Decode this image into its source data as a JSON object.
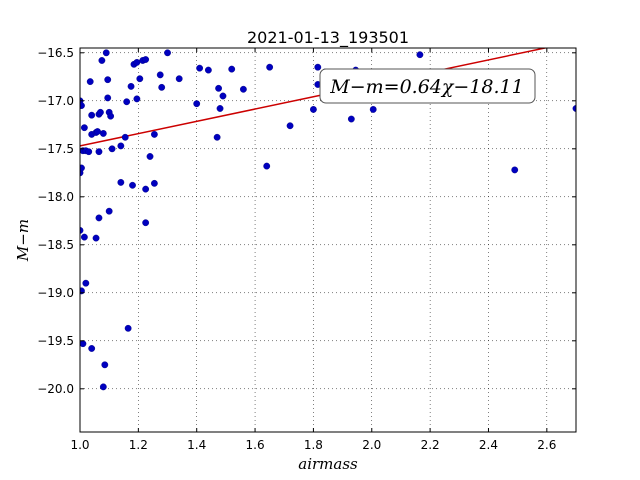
{
  "chart_data": {
    "type": "scatter",
    "title": "2021-01-13_193501",
    "xlabel": "airmass",
    "ylabel": "M−m",
    "xlim": [
      1.0,
      2.7
    ],
    "ylim": [
      -20.45,
      -16.45
    ],
    "y_inverted": false,
    "grid": true,
    "grid_style": "dotted",
    "x_ticks": [
      1.0,
      1.2,
      1.4,
      1.6,
      1.8,
      2.0,
      2.2,
      2.4,
      2.6
    ],
    "x_tick_labels": [
      "1.0",
      "1.2",
      "1.4",
      "1.6",
      "1.8",
      "2.0",
      "2.2",
      "2.4",
      "2.6"
    ],
    "y_ticks": [
      -16.5,
      -17.0,
      -17.5,
      -18.0,
      -18.5,
      -19.0,
      -19.5,
      -20.0
    ],
    "y_tick_labels": [
      "−16.5",
      "−17.0",
      "−17.5",
      "−18.0",
      "−18.5",
      "−19.0",
      "−19.5",
      "−20.0"
    ],
    "point_color": "#0000bf",
    "fit_color": "#cc0000",
    "fit": {
      "slope": 0.64,
      "intercept": -18.11,
      "x_range": [
        1.0,
        2.7
      ]
    },
    "annotation": {
      "lhs": "M−m",
      "eq": "=",
      "rhs": "0.64χ−18.11"
    },
    "points": [
      [
        1.0,
        -17.0
      ],
      [
        1.005,
        -17.05
      ],
      [
        1.0,
        -17.75
      ],
      [
        1.005,
        -17.7
      ],
      [
        1.01,
        -17.52
      ],
      [
        1.0,
        -18.35
      ],
      [
        1.015,
        -17.28
      ],
      [
        1.02,
        -17.52
      ],
      [
        1.03,
        -17.53
      ],
      [
        1.035,
        -16.8
      ],
      [
        1.04,
        -17.35
      ],
      [
        1.04,
        -17.15
      ],
      [
        1.055,
        -17.33
      ],
      [
        1.06,
        -17.32
      ],
      [
        1.065,
        -17.14
      ],
      [
        1.065,
        -17.53
      ],
      [
        1.07,
        -17.12
      ],
      [
        1.075,
        -16.58
      ],
      [
        1.08,
        -17.34
      ],
      [
        1.09,
        -16.5
      ],
      [
        1.095,
        -16.78
      ],
      [
        1.095,
        -16.97
      ],
      [
        1.1,
        -17.12
      ],
      [
        1.105,
        -17.16
      ],
      [
        1.11,
        -17.5
      ],
      [
        1.14,
        -17.47
      ],
      [
        1.14,
        -17.85
      ],
      [
        1.155,
        -17.38
      ],
      [
        1.16,
        -17.01
      ],
      [
        1.175,
        -16.85
      ],
      [
        1.18,
        -17.88
      ],
      [
        1.185,
        -16.62
      ],
      [
        1.195,
        -16.6
      ],
      [
        1.195,
        -16.98
      ],
      [
        1.205,
        -16.77
      ],
      [
        1.215,
        -16.58
      ],
      [
        1.225,
        -16.57
      ],
      [
        1.225,
        -17.92
      ],
      [
        1.24,
        -17.58
      ],
      [
        1.255,
        -17.35
      ],
      [
        1.255,
        -17.86
      ],
      [
        1.275,
        -16.73
      ],
      [
        1.28,
        -16.86
      ],
      [
        1.3,
        -16.5
      ],
      [
        1.34,
        -16.77
      ],
      [
        1.4,
        -17.03
      ],
      [
        1.41,
        -16.66
      ],
      [
        1.44,
        -16.68
      ],
      [
        1.47,
        -17.38
      ],
      [
        1.475,
        -16.87
      ],
      [
        1.48,
        -17.08
      ],
      [
        1.49,
        -16.95
      ],
      [
        1.52,
        -16.67
      ],
      [
        1.56,
        -16.88
      ],
      [
        1.64,
        -17.68
      ],
      [
        1.65,
        -16.65
      ],
      [
        1.72,
        -17.26
      ],
      [
        1.8,
        -17.09
      ],
      [
        1.815,
        -16.65
      ],
      [
        1.815,
        -16.83
      ],
      [
        1.84,
        -16.7
      ],
      [
        1.93,
        -17.19
      ],
      [
        1.945,
        -16.68
      ],
      [
        2.005,
        -17.09
      ],
      [
        2.08,
        -16.71
      ],
      [
        2.165,
        -16.52
      ],
      [
        2.49,
        -17.72
      ],
      [
        2.7,
        -17.08
      ],
      [
        1.005,
        -18.98
      ],
      [
        1.015,
        -18.42
      ],
      [
        1.02,
        -18.9
      ],
      [
        1.055,
        -18.43
      ],
      [
        1.065,
        -18.22
      ],
      [
        1.1,
        -18.15
      ],
      [
        1.225,
        -18.27
      ],
      [
        1.01,
        -19.53
      ],
      [
        1.04,
        -19.58
      ],
      [
        1.085,
        -19.75
      ],
      [
        1.165,
        -19.37
      ],
      [
        1.08,
        -19.98
      ]
    ]
  }
}
